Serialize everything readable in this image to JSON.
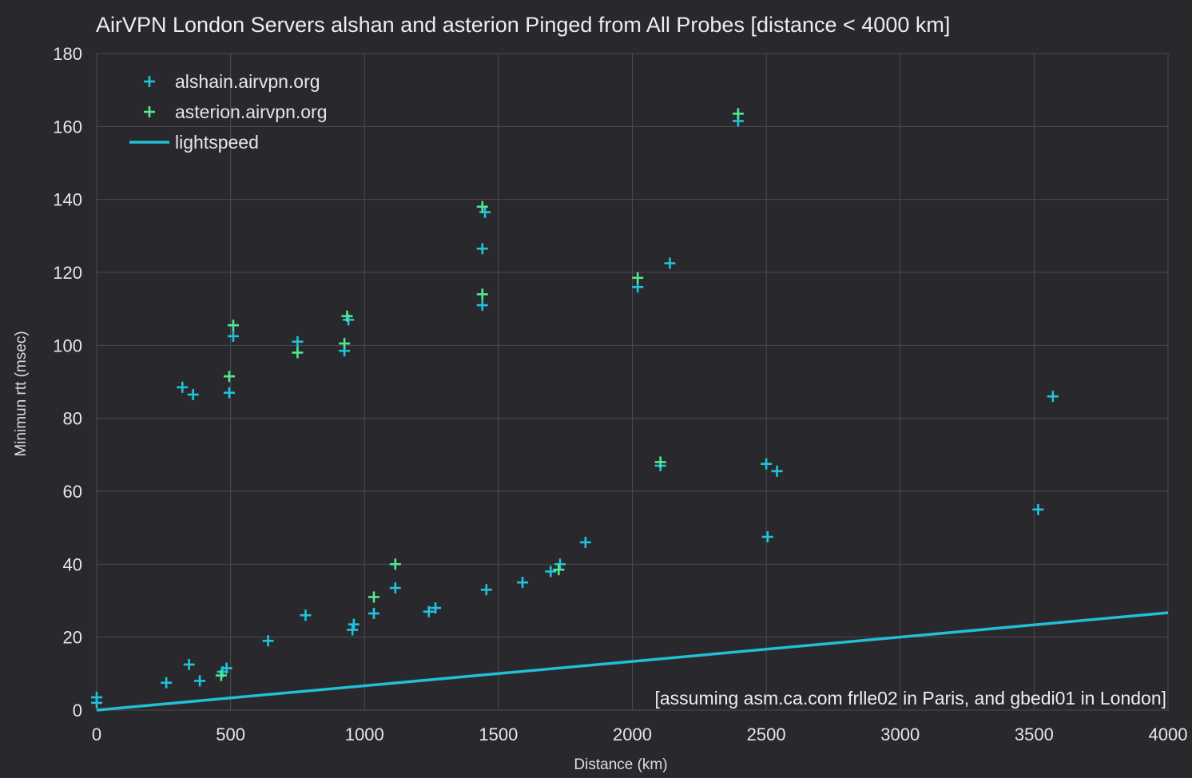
{
  "chart_data": {
    "type": "scatter",
    "title": "AirVPN London Servers alshan and asterion Pinged from All Probes [distance < 4000 km]",
    "xlabel": "Distance (km)",
    "ylabel": "Minimun rtt (msec)",
    "xlim": [
      0,
      4000
    ],
    "ylim": [
      0,
      180
    ],
    "x_ticks": [
      0,
      500,
      1000,
      1500,
      2000,
      2500,
      3000,
      3500,
      4000
    ],
    "y_ticks": [
      0,
      20,
      40,
      60,
      80,
      100,
      120,
      140,
      160,
      180
    ],
    "grid": true,
    "legend_position": "top-left",
    "annotation": "[assuming asm.ca.com frlle02 in Paris, and gbedi01 in London]",
    "colors": {
      "background": "#29292d",
      "alshain": "#1fc3dc",
      "asterion": "#52e88f",
      "lightspeed": "#22bfd6"
    },
    "series": [
      {
        "name": "alshain.airvpn.org",
        "marker": "plus",
        "points": [
          [
            0,
            2
          ],
          [
            0,
            3.5
          ],
          [
            260,
            7.5
          ],
          [
            320,
            88.5
          ],
          [
            345,
            12.5
          ],
          [
            360,
            86.5
          ],
          [
            385,
            8
          ],
          [
            470,
            10.5
          ],
          [
            485,
            11.5
          ],
          [
            495,
            87
          ],
          [
            510,
            102.5
          ],
          [
            640,
            19
          ],
          [
            750,
            101
          ],
          [
            780,
            26
          ],
          [
            925,
            98.5
          ],
          [
            940,
            107
          ],
          [
            955,
            22
          ],
          [
            960,
            23.5
          ],
          [
            1035,
            26.5
          ],
          [
            1115,
            33.5
          ],
          [
            1240,
            27
          ],
          [
            1265,
            28
          ],
          [
            1440,
            126.5
          ],
          [
            1440,
            111
          ],
          [
            1450,
            136.5
          ],
          [
            1455,
            33
          ],
          [
            1590,
            35
          ],
          [
            1695,
            38
          ],
          [
            1730,
            40
          ],
          [
            1825,
            46
          ],
          [
            2020,
            116
          ],
          [
            2105,
            67
          ],
          [
            2140,
            122.5
          ],
          [
            2395,
            161.5
          ],
          [
            2500,
            67.5
          ],
          [
            2505,
            47.5
          ],
          [
            2540,
            65.5
          ],
          [
            3515,
            55
          ],
          [
            3570,
            86
          ]
        ]
      },
      {
        "name": "asterion.airvpn.org",
        "marker": "plus",
        "points": [
          [
            465,
            9.5
          ],
          [
            495,
            91.5
          ],
          [
            510,
            105.5
          ],
          [
            750,
            98
          ],
          [
            925,
            100.5
          ],
          [
            935,
            108
          ],
          [
            1035,
            31
          ],
          [
            1115,
            40
          ],
          [
            1440,
            138
          ],
          [
            1440,
            114
          ],
          [
            1725,
            38.5
          ],
          [
            2020,
            118.5
          ],
          [
            2105,
            68
          ],
          [
            2395,
            163.5
          ]
        ]
      },
      {
        "name": "lightspeed",
        "type": "line",
        "points": [
          [
            0,
            0
          ],
          [
            4000,
            26.7
          ]
        ]
      }
    ]
  }
}
